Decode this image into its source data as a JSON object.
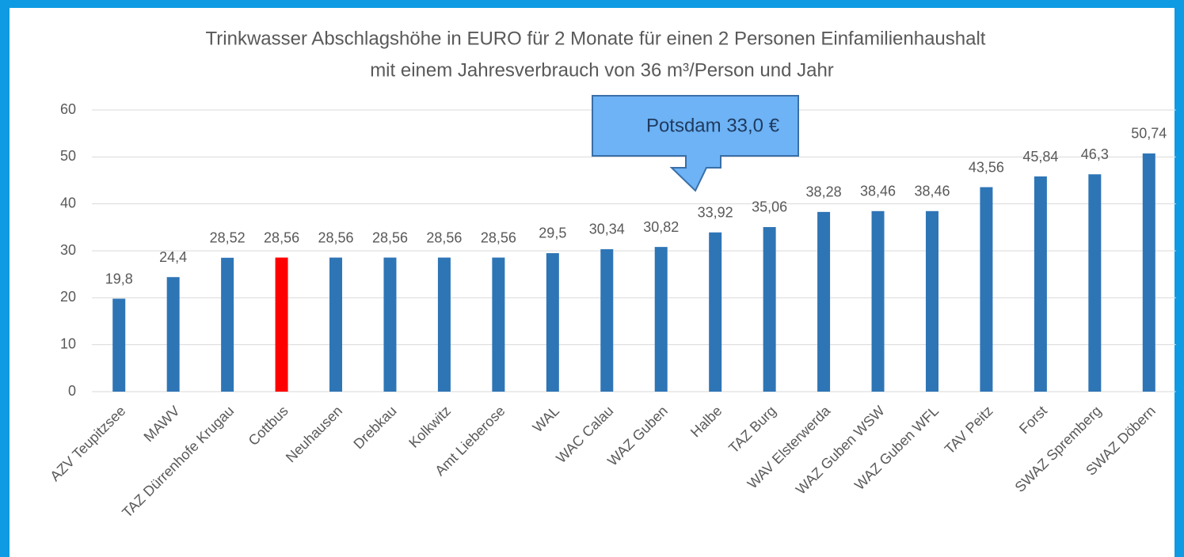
{
  "chart_data": {
    "type": "bar",
    "title": "Trinkwasser Abschlagshöhe in EURO für 2 Monate für einen 2 Personen Einfamilienhaushalt",
    "subtitle": "mit einem Jahresverbrauch von 36 m³/Person und Jahr",
    "annotation": "Potsdam 33,0 €",
    "categories": [
      "AZV Teupitzsee",
      "MAWV",
      "TAZ Dürrenhofe Krugau",
      "Cottbus",
      "Neuhausen",
      "Drebkau",
      "Kolkwitz",
      "Amt Lieberose",
      "WAL",
      "WAC Calau",
      "WAZ Guben",
      "Halbe",
      "TAZ Burg",
      "WAV Elsterwerda",
      "WAZ Guben WSW",
      "WAZ Guben WFL",
      "TAV Peitz",
      "Forst",
      "SWAZ Spremberg",
      "SWAZ Döbern"
    ],
    "values": [
      19.8,
      24.4,
      28.52,
      28.56,
      28.56,
      28.56,
      28.56,
      28.56,
      29.5,
      30.34,
      30.82,
      33.92,
      35.06,
      38.28,
      38.46,
      38.46,
      43.56,
      45.84,
      46.3,
      50.74
    ],
    "value_labels": [
      "19,8",
      "24,4",
      "28,52",
      "28,56",
      "28,56",
      "28,56",
      "28,56",
      "28,56",
      "29,5",
      "30,34",
      "30,82",
      "33,92",
      "35,06",
      "38,28",
      "38,46",
      "38,46",
      "43,56",
      "45,84",
      "46,3",
      "50,74"
    ],
    "colors": [
      "#2e75b6",
      "#2e75b6",
      "#2e75b6",
      "#ff0000",
      "#2e75b6",
      "#2e75b6",
      "#2e75b6",
      "#2e75b6",
      "#2e75b6",
      "#2e75b6",
      "#2e75b6",
      "#2e75b6",
      "#2e75b6",
      "#2e75b6",
      "#2e75b6",
      "#2e75b6",
      "#2e75b6",
      "#2e75b6",
      "#2e75b6",
      "#2e75b6"
    ],
    "ylim": [
      0,
      60
    ],
    "yticks": [
      0,
      10,
      20,
      30,
      40,
      50,
      60
    ],
    "grid": true
  }
}
